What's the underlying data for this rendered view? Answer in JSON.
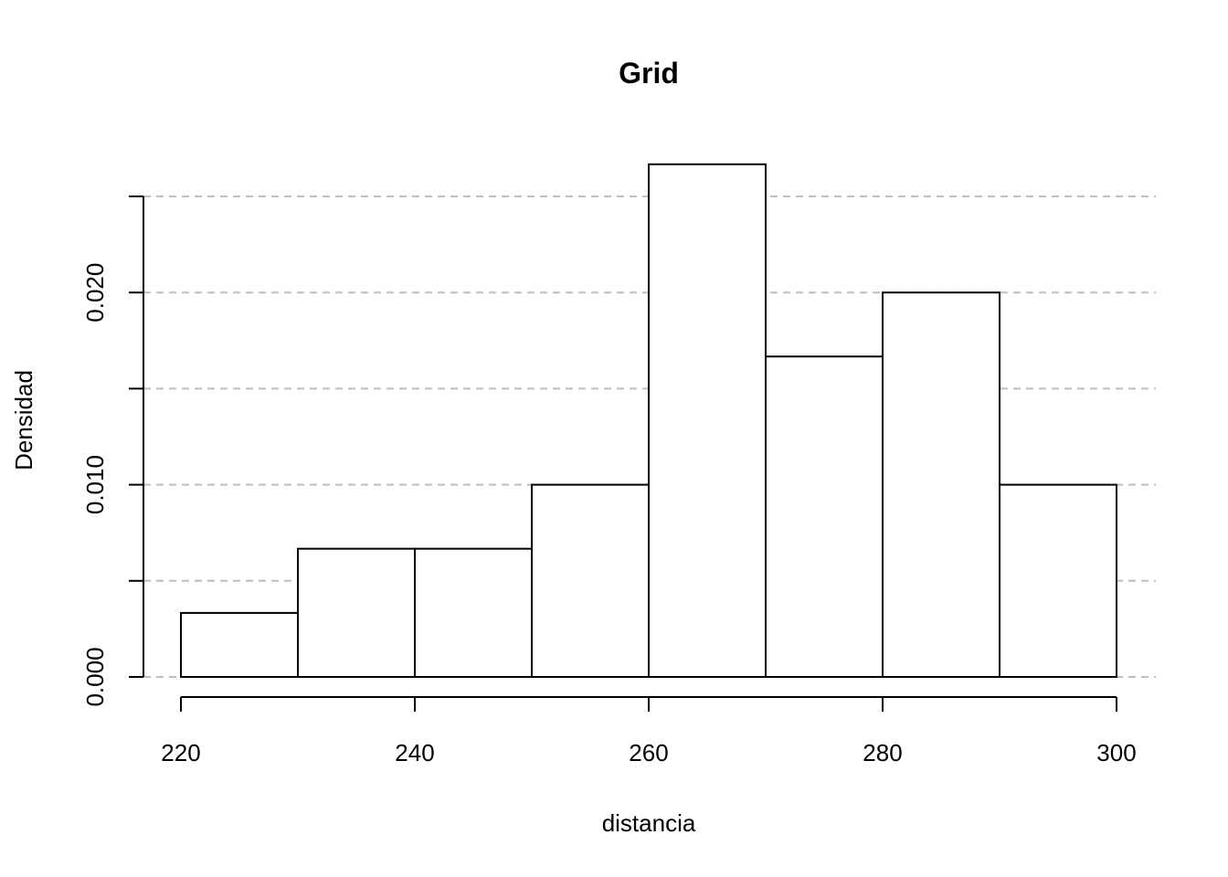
{
  "chart_data": {
    "type": "bar",
    "title": "Grid",
    "xlabel": "distancia",
    "ylabel": "Densidad",
    "bins": [
      {
        "start": 220,
        "end": 230,
        "density": 0.00333
      },
      {
        "start": 230,
        "end": 240,
        "density": 0.00667
      },
      {
        "start": 240,
        "end": 250,
        "density": 0.00667
      },
      {
        "start": 250,
        "end": 260,
        "density": 0.01
      },
      {
        "start": 260,
        "end": 270,
        "density": 0.02667
      },
      {
        "start": 270,
        "end": 280,
        "density": 0.01667
      },
      {
        "start": 280,
        "end": 290,
        "density": 0.02
      },
      {
        "start": 290,
        "end": 300,
        "density": 0.01
      }
    ],
    "xlim": [
      220,
      300
    ],
    "ylim": [
      0,
      0.025
    ],
    "xticks": [
      220,
      240,
      260,
      280,
      300
    ],
    "xtick_labels": [
      "220",
      "240",
      "260",
      "280",
      "300"
    ],
    "yticks": [
      0,
      0.005,
      0.01,
      0.015,
      0.02,
      0.025
    ],
    "ytick_labels": [
      "0.000",
      "",
      "0.010",
      "",
      "0.020",
      ""
    ],
    "grid": true,
    "grid_style": "dashed-horizontal",
    "bar_fill": "#ffffff",
    "bar_stroke": "#000000",
    "grid_color": "#bebebe"
  }
}
